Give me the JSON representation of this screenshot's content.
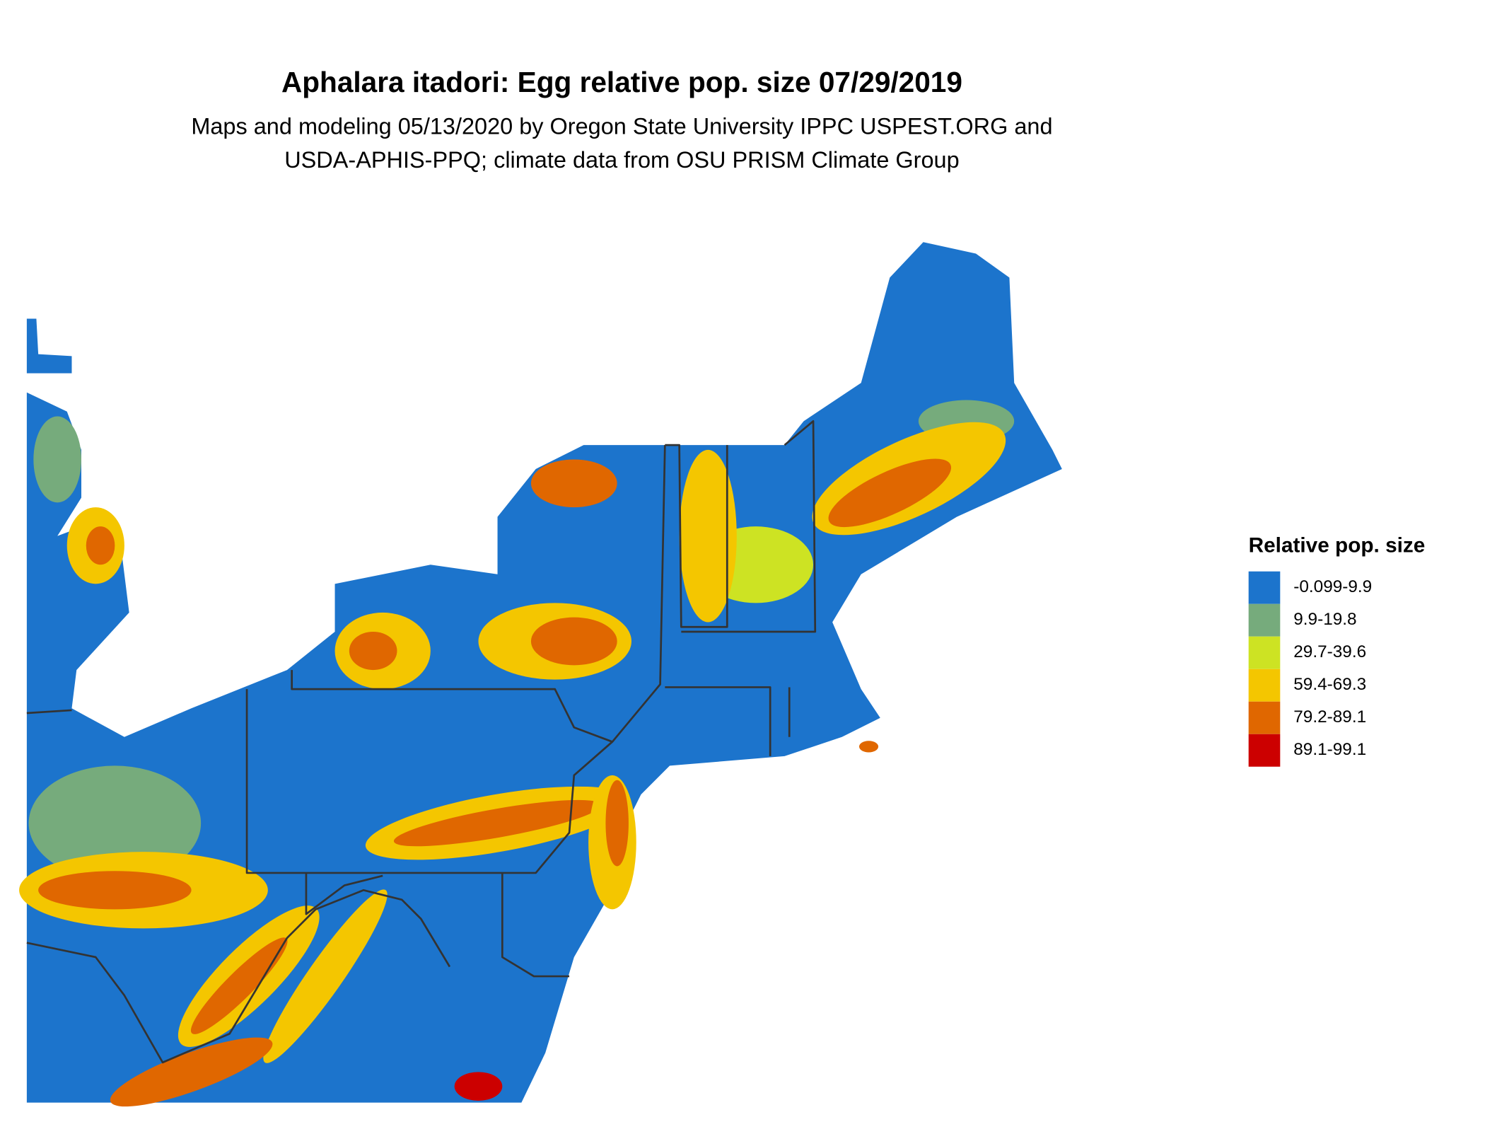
{
  "title": "Aphalara itadori: Egg relative pop. size 07/29/2019",
  "subtitle": [
    "Maps and modeling 05/13/2020 by Oregon State University IPPC USPEST.ORG and",
    "USDA-APHIS-PPQ; climate data from OSU PRISM Climate Group"
  ],
  "legend": {
    "title": "Relative pop. size",
    "items": [
      {
        "label": "-0.099-9.9",
        "color": "#1c74cc"
      },
      {
        "label": "9.9-19.8",
        "color": "#76ab7c"
      },
      {
        "label": "29.7-39.6",
        "color": "#cde323"
      },
      {
        "label": "59.4-69.3",
        "color": "#f4c600"
      },
      {
        "label": "79.2-89.1",
        "color": "#e06700"
      },
      {
        "label": "89.1-99.1",
        "color": "#cc0000"
      }
    ]
  }
}
